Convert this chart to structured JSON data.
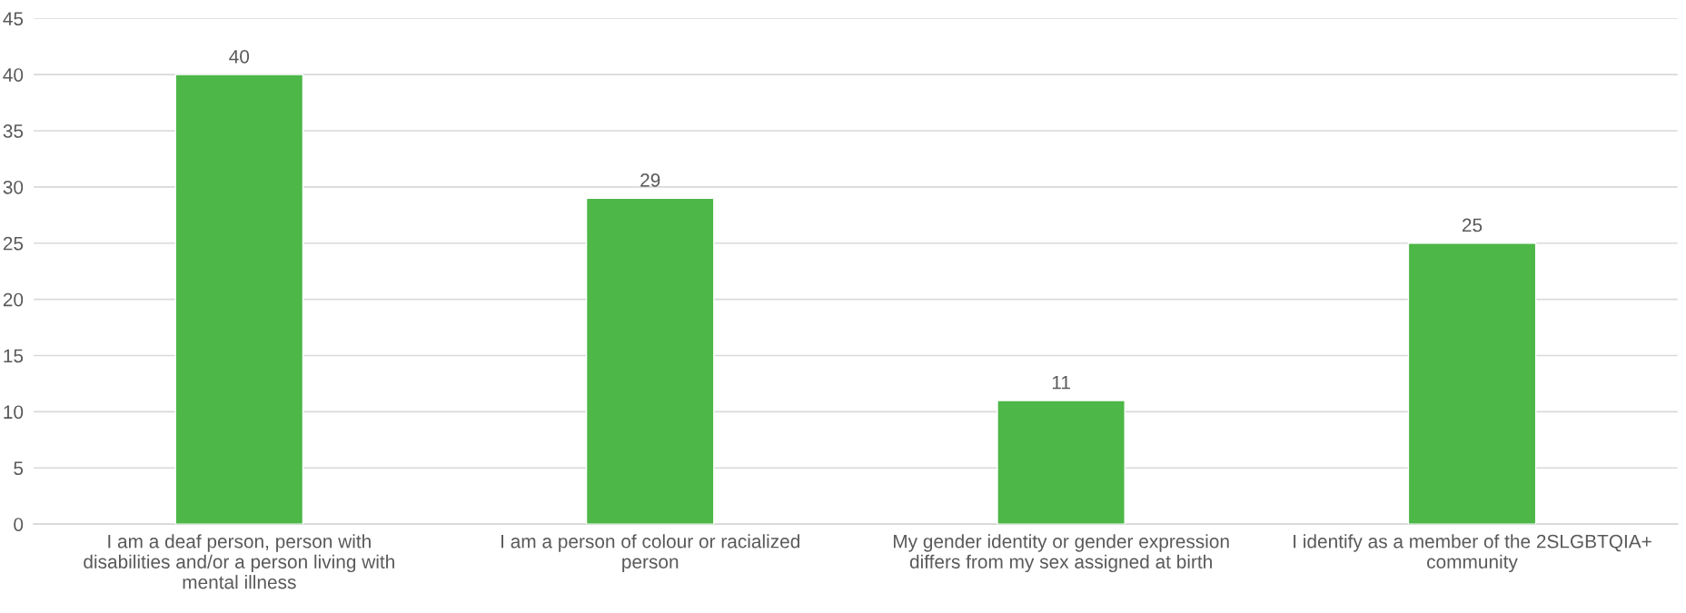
{
  "chart_data": {
    "type": "bar",
    "categories": [
      "I am a deaf person, person with disabilities and/or a person living with mental illness",
      "I am a person of colour or racialized person",
      "My gender identity or gender expression differs from my sex assigned at birth",
      "I identify as a member of the 2SLGBTQIA+ community"
    ],
    "values": [
      40,
      29,
      11,
      25
    ],
    "color": "#4db748",
    "ylim": [
      0,
      45
    ],
    "yticks": [
      0,
      5,
      10,
      15,
      20,
      25,
      30,
      35,
      40,
      45
    ],
    "grid": "y",
    "data_labels": true
  }
}
